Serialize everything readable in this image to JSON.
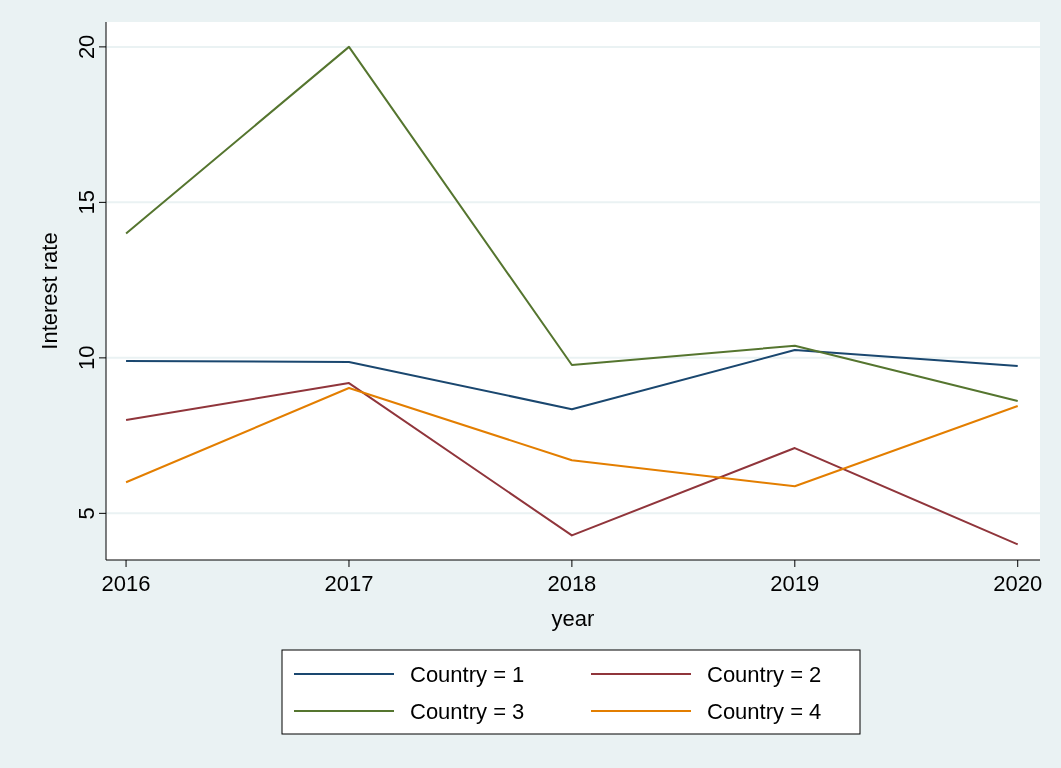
{
  "chart_data": {
    "type": "line",
    "xlabel": "year",
    "ylabel": "Interest rate",
    "x": [
      2016,
      2017,
      2018,
      2019,
      2020
    ],
    "xlim": [
      2015.91,
      2020.1
    ],
    "xticks": [
      2016,
      2017,
      2018,
      2019,
      2020
    ],
    "ylim": [
      3.5,
      20.8
    ],
    "yticks": [
      5,
      10,
      15,
      20
    ],
    "grid": "y",
    "legend": "bottom",
    "series": [
      {
        "name": "Country = 1",
        "color": "#1a476f",
        "values": [
          9.9,
          9.87,
          8.35,
          10.25,
          9.74
        ]
      },
      {
        "name": "Country = 2",
        "color": "#90353b",
        "values": [
          8.0,
          9.19,
          4.29,
          7.1,
          4.0
        ]
      },
      {
        "name": "Country = 3",
        "color": "#55752f",
        "values": [
          14.0,
          20.0,
          9.77,
          10.39,
          8.61
        ]
      },
      {
        "name": "Country = 4",
        "color": "#e37e00",
        "values": [
          6.0,
          9.03,
          6.71,
          5.87,
          8.45
        ]
      }
    ]
  }
}
